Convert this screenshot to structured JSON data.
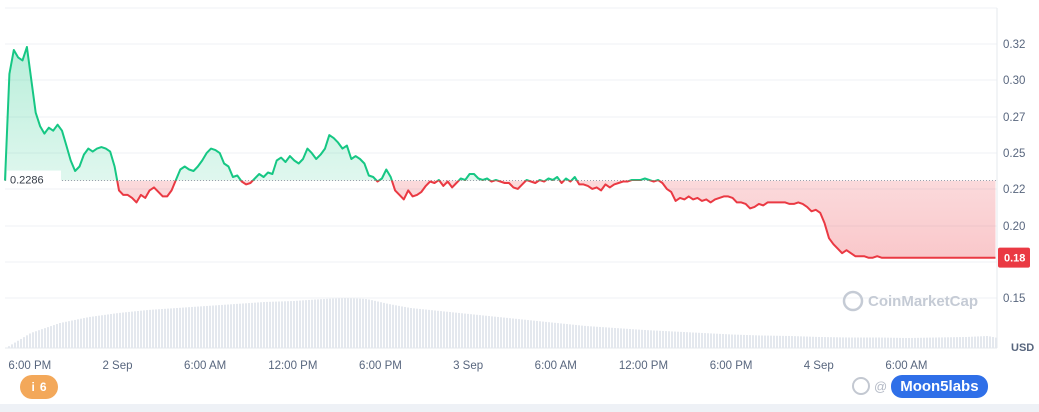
{
  "chart_data": {
    "type": "area",
    "unit": "USD",
    "y_ticks": [
      0.32,
      0.3,
      0.27,
      0.25,
      0.22,
      0.2,
      0.18,
      0.15
    ],
    "y_tick_labels": [
      "0.32",
      "0.30",
      "0.27",
      "0.25",
      "0.22",
      "0.20",
      "",
      "0.15"
    ],
    "x_tick_labels": [
      "6:00 PM",
      "2 Sep",
      "6:00 AM",
      "12:00 PM",
      "6:00 PM",
      "3 Sep",
      "6:00 AM",
      "12:00 PM",
      "6:00 PM",
      "4 Sep",
      "6:00 AM"
    ],
    "x_tick_hours": [
      18,
      24,
      30,
      36,
      42,
      48,
      54,
      60,
      66,
      72,
      78
    ],
    "x_range_hours": [
      16.3,
      84.2
    ],
    "reference_price": 0.2286,
    "reference_label": "0.2286",
    "current_price_label": "0.18",
    "up_color": "#16c784",
    "down_color": "#ea3943",
    "price_series": [
      [
        16.3,
        0.2286
      ],
      [
        16.6,
        0.3
      ],
      [
        16.9,
        0.316
      ],
      [
        17.2,
        0.311
      ],
      [
        17.5,
        0.309
      ],
      [
        17.8,
        0.318
      ],
      [
        18.1,
        0.296
      ],
      [
        18.4,
        0.274
      ],
      [
        18.7,
        0.265
      ],
      [
        19.0,
        0.26
      ],
      [
        19.3,
        0.264
      ],
      [
        19.6,
        0.262
      ],
      [
        19.9,
        0.266
      ],
      [
        20.2,
        0.262
      ],
      [
        20.5,
        0.252
      ],
      [
        20.8,
        0.242
      ],
      [
        21.1,
        0.235
      ],
      [
        21.4,
        0.238
      ],
      [
        21.7,
        0.246
      ],
      [
        22.0,
        0.25
      ],
      [
        22.3,
        0.248
      ],
      [
        22.6,
        0.25
      ],
      [
        22.9,
        0.251
      ],
      [
        23.2,
        0.25
      ],
      [
        23.5,
        0.248
      ],
      [
        23.8,
        0.238
      ],
      [
        24.1,
        0.222
      ],
      [
        24.4,
        0.219
      ],
      [
        24.7,
        0.219
      ],
      [
        25.0,
        0.217
      ],
      [
        25.3,
        0.214
      ],
      [
        25.6,
        0.219
      ],
      [
        25.9,
        0.217
      ],
      [
        26.2,
        0.222
      ],
      [
        26.5,
        0.224
      ],
      [
        26.8,
        0.221
      ],
      [
        27.1,
        0.218
      ],
      [
        27.4,
        0.218
      ],
      [
        27.7,
        0.222
      ],
      [
        28.0,
        0.229
      ],
      [
        28.3,
        0.236
      ],
      [
        28.6,
        0.238
      ],
      [
        28.9,
        0.236
      ],
      [
        29.2,
        0.235
      ],
      [
        29.5,
        0.238
      ],
      [
        29.8,
        0.242
      ],
      [
        30.1,
        0.247
      ],
      [
        30.4,
        0.25
      ],
      [
        30.7,
        0.249
      ],
      [
        31.0,
        0.247
      ],
      [
        31.3,
        0.24
      ],
      [
        31.6,
        0.238
      ],
      [
        31.9,
        0.231
      ],
      [
        32.2,
        0.232
      ],
      [
        32.5,
        0.228
      ],
      [
        32.8,
        0.226
      ],
      [
        33.1,
        0.227
      ],
      [
        33.4,
        0.23
      ],
      [
        33.7,
        0.233
      ],
      [
        34.0,
        0.231
      ],
      [
        34.3,
        0.234
      ],
      [
        34.6,
        0.233
      ],
      [
        34.9,
        0.242
      ],
      [
        35.2,
        0.244
      ],
      [
        35.5,
        0.241
      ],
      [
        35.8,
        0.245
      ],
      [
        36.1,
        0.242
      ],
      [
        36.4,
        0.24
      ],
      [
        36.7,
        0.243
      ],
      [
        37.0,
        0.25
      ],
      [
        37.3,
        0.247
      ],
      [
        37.6,
        0.243
      ],
      [
        37.9,
        0.246
      ],
      [
        38.2,
        0.25
      ],
      [
        38.5,
        0.259
      ],
      [
        38.8,
        0.257
      ],
      [
        39.1,
        0.254
      ],
      [
        39.4,
        0.25
      ],
      [
        39.7,
        0.252
      ],
      [
        40.0,
        0.243
      ],
      [
        40.3,
        0.245
      ],
      [
        40.6,
        0.243
      ],
      [
        40.9,
        0.24
      ],
      [
        41.2,
        0.232
      ],
      [
        41.5,
        0.231
      ],
      [
        41.8,
        0.228
      ],
      [
        42.1,
        0.23
      ],
      [
        42.4,
        0.236
      ],
      [
        42.7,
        0.231
      ],
      [
        43.0,
        0.222
      ],
      [
        43.3,
        0.219
      ],
      [
        43.6,
        0.216
      ],
      [
        43.9,
        0.222
      ],
      [
        44.2,
        0.218
      ],
      [
        44.5,
        0.219
      ],
      [
        44.8,
        0.221
      ],
      [
        45.1,
        0.225
      ],
      [
        45.4,
        0.228
      ],
      [
        45.7,
        0.227
      ],
      [
        46.0,
        0.229
      ],
      [
        46.3,
        0.225
      ],
      [
        46.6,
        0.228
      ],
      [
        46.9,
        0.224
      ],
      [
        47.2,
        0.227
      ],
      [
        47.5,
        0.23
      ],
      [
        47.8,
        0.229
      ],
      [
        48.1,
        0.233
      ],
      [
        48.4,
        0.233
      ],
      [
        48.7,
        0.23
      ],
      [
        49.0,
        0.229
      ],
      [
        49.3,
        0.23
      ],
      [
        49.6,
        0.228
      ],
      [
        49.9,
        0.229
      ],
      [
        50.2,
        0.228
      ],
      [
        50.5,
        0.227
      ],
      [
        50.8,
        0.227
      ],
      [
        51.1,
        0.224
      ],
      [
        51.4,
        0.223
      ],
      [
        51.7,
        0.226
      ],
      [
        52.0,
        0.229
      ],
      [
        52.3,
        0.228
      ],
      [
        52.6,
        0.227
      ],
      [
        52.9,
        0.229
      ],
      [
        53.2,
        0.228
      ],
      [
        53.5,
        0.23
      ],
      [
        53.8,
        0.229
      ],
      [
        54.1,
        0.231
      ],
      [
        54.4,
        0.227
      ],
      [
        54.7,
        0.23
      ],
      [
        55.0,
        0.228
      ],
      [
        55.3,
        0.231
      ],
      [
        55.6,
        0.226
      ],
      [
        55.9,
        0.226
      ],
      [
        56.2,
        0.225
      ],
      [
        56.5,
        0.223
      ],
      [
        56.8,
        0.224
      ],
      [
        57.1,
        0.222
      ],
      [
        57.4,
        0.226
      ],
      [
        57.7,
        0.224
      ],
      [
        58.0,
        0.226
      ],
      [
        58.3,
        0.227
      ],
      [
        58.6,
        0.228
      ],
      [
        58.9,
        0.228
      ],
      [
        59.2,
        0.229
      ],
      [
        59.5,
        0.229
      ],
      [
        59.8,
        0.229
      ],
      [
        60.1,
        0.23
      ],
      [
        60.4,
        0.229
      ],
      [
        60.7,
        0.228
      ],
      [
        61.0,
        0.229
      ],
      [
        61.3,
        0.227
      ],
      [
        61.6,
        0.223
      ],
      [
        61.9,
        0.221
      ],
      [
        62.2,
        0.215
      ],
      [
        62.5,
        0.217
      ],
      [
        62.8,
        0.216
      ],
      [
        63.1,
        0.218
      ],
      [
        63.4,
        0.216
      ],
      [
        63.7,
        0.217
      ],
      [
        64.0,
        0.215
      ],
      [
        64.3,
        0.216
      ],
      [
        64.6,
        0.214
      ],
      [
        64.9,
        0.216
      ],
      [
        65.2,
        0.217
      ],
      [
        65.5,
        0.218
      ],
      [
        65.8,
        0.218
      ],
      [
        66.1,
        0.217
      ],
      [
        66.4,
        0.214
      ],
      [
        66.7,
        0.214
      ],
      [
        67.0,
        0.213
      ],
      [
        67.3,
        0.21
      ],
      [
        67.6,
        0.211
      ],
      [
        67.9,
        0.213
      ],
      [
        68.2,
        0.212
      ],
      [
        68.5,
        0.214
      ],
      [
        68.8,
        0.214
      ],
      [
        69.1,
        0.214
      ],
      [
        69.4,
        0.214
      ],
      [
        69.7,
        0.214
      ],
      [
        70.0,
        0.213
      ],
      [
        70.3,
        0.213
      ],
      [
        70.6,
        0.214
      ],
      [
        70.9,
        0.213
      ],
      [
        71.2,
        0.211
      ],
      [
        71.5,
        0.208
      ],
      [
        71.8,
        0.209
      ],
      [
        72.1,
        0.207
      ],
      [
        72.4,
        0.2
      ],
      [
        72.7,
        0.19
      ],
      [
        73.0,
        0.186
      ],
      [
        73.3,
        0.183
      ],
      [
        73.6,
        0.18
      ],
      [
        73.9,
        0.182
      ],
      [
        74.2,
        0.18
      ],
      [
        74.5,
        0.178
      ],
      [
        74.8,
        0.178
      ],
      [
        75.1,
        0.178
      ],
      [
        75.4,
        0.177
      ],
      [
        75.7,
        0.177
      ],
      [
        76.0,
        0.178
      ],
      [
        76.3,
        0.177
      ],
      [
        76.6,
        0.177
      ],
      [
        76.9,
        0.177
      ],
      [
        77.2,
        0.177
      ],
      [
        77.5,
        0.177
      ],
      [
        77.8,
        0.177
      ],
      [
        78.1,
        0.177
      ],
      [
        78.4,
        0.177
      ],
      [
        78.7,
        0.177
      ],
      [
        79.0,
        0.177
      ],
      [
        79.3,
        0.177
      ],
      [
        79.6,
        0.177
      ],
      [
        79.9,
        0.177
      ],
      [
        80.2,
        0.177
      ],
      [
        80.5,
        0.177
      ],
      [
        80.8,
        0.177
      ],
      [
        81.1,
        0.177
      ],
      [
        81.4,
        0.177
      ],
      [
        81.7,
        0.177
      ],
      [
        82.0,
        0.177
      ],
      [
        82.3,
        0.177
      ],
      [
        82.6,
        0.177
      ],
      [
        82.9,
        0.177
      ],
      [
        83.2,
        0.177
      ],
      [
        83.5,
        0.177
      ],
      [
        83.8,
        0.177
      ],
      [
        84.1,
        0.177
      ]
    ],
    "volume_profile": [
      [
        16.3,
        0.0
      ],
      [
        18.0,
        0.3
      ],
      [
        20.0,
        0.5
      ],
      [
        22.0,
        0.62
      ],
      [
        24.0,
        0.7
      ],
      [
        26.0,
        0.76
      ],
      [
        28.0,
        0.8
      ],
      [
        30.0,
        0.84
      ],
      [
        32.0,
        0.88
      ],
      [
        34.0,
        0.92
      ],
      [
        36.0,
        0.94
      ],
      [
        38.0,
        0.98
      ],
      [
        39.5,
        1.0
      ],
      [
        41.0,
        0.98
      ],
      [
        42.5,
        0.88
      ],
      [
        44.0,
        0.8
      ],
      [
        46.0,
        0.74
      ],
      [
        48.0,
        0.68
      ],
      [
        50.0,
        0.62
      ],
      [
        52.0,
        0.56
      ],
      [
        54.0,
        0.5
      ],
      [
        56.0,
        0.44
      ],
      [
        58.0,
        0.4
      ],
      [
        60.0,
        0.36
      ],
      [
        62.0,
        0.33
      ],
      [
        64.0,
        0.3
      ],
      [
        66.0,
        0.27
      ],
      [
        68.0,
        0.25
      ],
      [
        70.0,
        0.24
      ],
      [
        72.0,
        0.22
      ],
      [
        74.0,
        0.21
      ],
      [
        76.0,
        0.21
      ],
      [
        78.0,
        0.2
      ],
      [
        80.0,
        0.21
      ],
      [
        82.0,
        0.22
      ],
      [
        83.5,
        0.24
      ],
      [
        84.2,
        0.2
      ]
    ]
  },
  "watermark": {
    "text": "CoinMarketCap"
  },
  "badge": {
    "icon": "i",
    "count": "6"
  },
  "overlay": {
    "at": "@",
    "brand": "Moon5labs"
  }
}
